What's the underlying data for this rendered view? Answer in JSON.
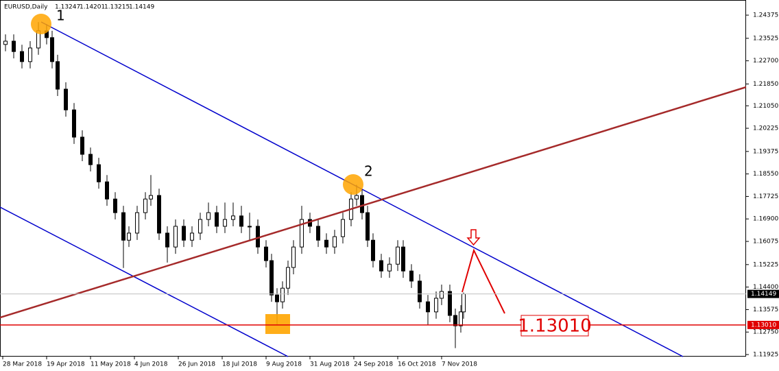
{
  "chart_data": {
    "type": "candlestick",
    "symbol": "EURUSD,Daily",
    "ohlc": [
      "1.13247",
      "1.14201",
      "1.13215",
      "1.14149"
    ],
    "x": [
      1,
      4,
      7,
      10,
      13,
      16,
      18,
      20,
      23,
      26,
      29,
      32,
      35,
      38,
      41,
      44,
      46,
      49,
      52,
      54,
      57,
      60,
      63,
      66,
      69,
      72,
      75,
      78,
      81,
      84,
      87,
      90,
      93,
      96,
      98,
      100,
      102,
      104,
      106,
      109,
      112,
      115,
      118,
      121,
      124,
      127,
      129,
      131,
      133,
      135,
      138,
      141,
      144,
      146,
      149,
      152,
      155,
      158,
      160,
      163,
      165,
      167,
      168
    ],
    "open": [
      1.233,
      1.2342,
      1.2304,
      1.2267,
      1.2317,
      1.238,
      1.2355,
      1.2267,
      1.2166,
      1.209,
      1.199,
      1.1927,
      1.1889,
      1.1826,
      1.1763,
      1.1713,
      1.1612,
      1.1638,
      1.1713,
      1.1763,
      1.1776,
      1.1638,
      1.1587,
      1.1663,
      1.1612,
      1.1638,
      1.1688,
      1.1713,
      1.1663,
      1.1688,
      1.1701,
      1.1663,
      1.1663,
      1.1587,
      1.1537,
      1.1411,
      1.1386,
      1.1436,
      1.1512,
      1.1587,
      1.1688,
      1.1663,
      1.1612,
      1.1587,
      1.1625,
      1.1688,
      1.1763,
      1.1776,
      1.1713,
      1.1612,
      1.1537,
      1.1499,
      1.1524,
      1.1587,
      1.1499,
      1.1462,
      1.1386,
      1.1349,
      1.1399,
      1.1424,
      1.1336,
      1.1298,
      1.1349
    ],
    "high": [
      1.2367,
      1.2367,
      1.2329,
      1.2342,
      1.2412,
      1.2405,
      1.238,
      1.2292,
      1.2191,
      1.2115,
      1.2015,
      1.1952,
      1.1914,
      1.1851,
      1.1788,
      1.1738,
      1.1663,
      1.1738,
      1.1788,
      1.1851,
      1.1801,
      1.1663,
      1.1688,
      1.1688,
      1.1663,
      1.1713,
      1.175,
      1.1738,
      1.175,
      1.175,
      1.1738,
      1.1713,
      1.1688,
      1.1612,
      1.1562,
      1.1436,
      1.1461,
      1.1537,
      1.1612,
      1.1738,
      1.1713,
      1.1688,
      1.1637,
      1.165,
      1.1713,
      1.1788,
      1.1815,
      1.1801,
      1.1738,
      1.1637,
      1.1562,
      1.1549,
      1.1612,
      1.1612,
      1.1524,
      1.1487,
      1.1411,
      1.1424,
      1.1449,
      1.1449,
      1.1361,
      1.1374,
      1.142
    ],
    "low": [
      1.2305,
      1.2279,
      1.2242,
      1.2242,
      1.2292,
      1.233,
      1.2242,
      1.2141,
      1.2065,
      1.1965,
      1.1902,
      1.1864,
      1.1801,
      1.1738,
      1.1688,
      1.151,
      1.1587,
      1.1613,
      1.1688,
      1.1738,
      1.1613,
      1.153,
      1.1562,
      1.1587,
      1.1587,
      1.1613,
      1.1663,
      1.1638,
      1.1638,
      1.1663,
      1.1638,
      1.1613,
      1.1562,
      1.1512,
      1.1386,
      1.1301,
      1.1361,
      1.1411,
      1.1487,
      1.1562,
      1.1638,
      1.1587,
      1.1562,
      1.1562,
      1.16,
      1.1663,
      1.1738,
      1.1688,
      1.1587,
      1.1512,
      1.1474,
      1.1474,
      1.1499,
      1.1474,
      1.1437,
      1.1361,
      1.13,
      1.1324,
      1.1374,
      1.1311,
      1.1216,
      1.1273,
      1.1324
    ],
    "close": [
      1.2342,
      1.2304,
      1.2267,
      1.2317,
      1.238,
      1.2355,
      1.2267,
      1.2166,
      1.209,
      1.199,
      1.1927,
      1.1889,
      1.1826,
      1.1763,
      1.1713,
      1.1612,
      1.1638,
      1.1713,
      1.1763,
      1.1776,
      1.1638,
      1.1587,
      1.1663,
      1.1612,
      1.1638,
      1.1688,
      1.1713,
      1.1663,
      1.1688,
      1.1701,
      1.1663,
      1.1663,
      1.1587,
      1.1537,
      1.1411,
      1.1386,
      1.1436,
      1.1512,
      1.1587,
      1.1688,
      1.1663,
      1.1612,
      1.1587,
      1.1625,
      1.1688,
      1.1763,
      1.1776,
      1.1713,
      1.1612,
      1.1537,
      1.1499,
      1.1524,
      1.1587,
      1.1499,
      1.1462,
      1.1386,
      1.1349,
      1.1399,
      1.1424,
      1.1336,
      1.1298,
      1.1349,
      1.14149
    ],
    "bull_color": "#ffffff",
    "bear_color": "#000000",
    "candle_outline": "#000000",
    "xlim": [
      -1,
      271
    ],
    "xticks": [
      {
        "value": 0,
        "label": "28 Mar 2018"
      },
      {
        "value": 16,
        "label": "19 Apr 2018"
      },
      {
        "value": 32,
        "label": "11 May 2018"
      },
      {
        "value": 48,
        "label": "4 Jun 2018"
      },
      {
        "value": 64,
        "label": "26 Jun 2018"
      },
      {
        "value": 80,
        "label": "18 Jul 2018"
      },
      {
        "value": 96,
        "label": "9 Aug 2018"
      },
      {
        "value": 112,
        "label": "31 Aug 2018"
      },
      {
        "value": 128,
        "label": "24 Sep 2018"
      },
      {
        "value": 144,
        "label": "16 Oct 2018"
      },
      {
        "value": 160,
        "label": "7 Nov 2018"
      }
    ],
    "ylim": [
      1.1185,
      1.2493
    ],
    "yticks": [
      1.24375,
      1.23525,
      {
        "value": 1.227,
        "label": "1.22700"
      },
      {
        "value": 1.2185,
        "label": "1.21850"
      },
      {
        "value": 1.2105,
        "label": "1.21050"
      },
      1.20225,
      1.19375,
      {
        "value": 1.1855,
        "label": "1.18550"
      },
      1.17725,
      {
        "value": 1.169,
        "label": "1.16900"
      },
      1.16075,
      1.15225,
      {
        "value": 1.144,
        "label": "1.14400"
      },
      1.13575,
      {
        "value": 1.1275,
        "label": "1.12750"
      },
      1.11925
    ],
    "current_price": 1.14149,
    "support_level": {
      "value": 1.1301,
      "label": "1.13010"
    },
    "annotations": [
      "1",
      "2"
    ]
  }
}
